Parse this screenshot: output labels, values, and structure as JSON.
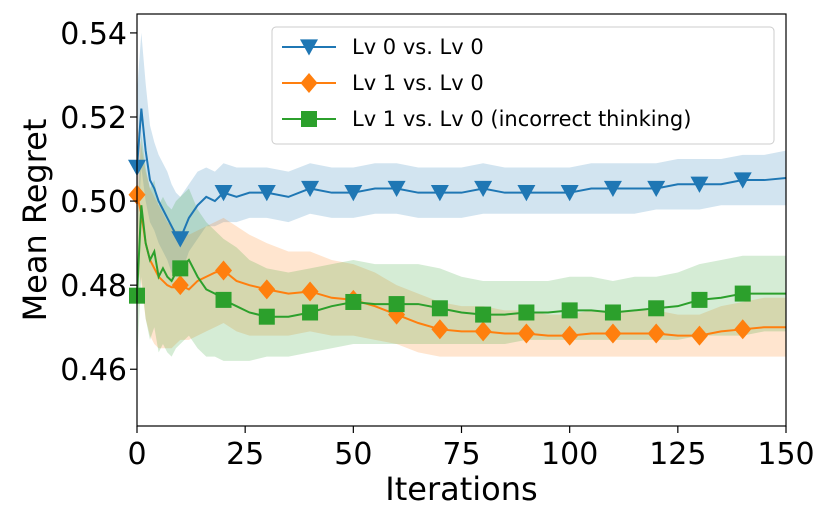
{
  "chart_data": {
    "type": "line",
    "title": "",
    "xlabel": "Iterations",
    "ylabel": "Mean Regret",
    "xlim": [
      0,
      150
    ],
    "ylim": [
      0.4465,
      0.5445
    ],
    "xticks": [
      0,
      25,
      50,
      75,
      100,
      125,
      150
    ],
    "yticks": [
      0.46,
      0.48,
      0.5,
      0.52,
      0.54
    ],
    "xtick_labels": [
      "0",
      "25",
      "50",
      "75",
      "100",
      "125",
      "150"
    ],
    "ytick_labels": [
      "0.46",
      "0.48",
      "0.50",
      "0.52",
      "0.54"
    ],
    "grid": false,
    "legend_position": "top-right",
    "series": [
      {
        "name": "Lv 0 vs. Lv 0",
        "color": "#1f77b4",
        "marker": "triangle-down",
        "markers_every": 10,
        "x": [
          0,
          1,
          2,
          3,
          4,
          5,
          6,
          7,
          8,
          9,
          10,
          12,
          14,
          16,
          18,
          20,
          23,
          26,
          30,
          35,
          40,
          45,
          50,
          55,
          60,
          65,
          70,
          75,
          80,
          85,
          90,
          95,
          100,
          105,
          110,
          115,
          120,
          125,
          130,
          135,
          140,
          145,
          150
        ],
        "y": [
          0.508,
          0.522,
          0.512,
          0.505,
          0.503,
          0.5,
          0.498,
          0.496,
          0.494,
          0.492,
          0.491,
          0.496,
          0.499,
          0.501,
          0.5,
          0.502,
          0.501,
          0.502,
          0.502,
          0.501,
          0.503,
          0.502,
          0.502,
          0.503,
          0.503,
          0.502,
          0.502,
          0.502,
          0.503,
          0.502,
          0.502,
          0.502,
          0.502,
          0.503,
          0.503,
          0.503,
          0.503,
          0.504,
          0.504,
          0.504,
          0.505,
          0.505,
          0.5055
        ],
        "lower": [
          0.49,
          0.508,
          0.5,
          0.495,
          0.493,
          0.49,
          0.488,
          0.486,
          0.483,
          0.482,
          0.482,
          0.488,
          0.491,
          0.494,
          0.494,
          0.495,
          0.495,
          0.496,
          0.496,
          0.495,
          0.497,
          0.496,
          0.496,
          0.497,
          0.497,
          0.496,
          0.496,
          0.496,
          0.497,
          0.497,
          0.497,
          0.497,
          0.497,
          0.497,
          0.497,
          0.497,
          0.498,
          0.498,
          0.498,
          0.499,
          0.499,
          0.499,
          0.499
        ],
        "upper": [
          0.526,
          0.54,
          0.528,
          0.518,
          0.514,
          0.511,
          0.509,
          0.507,
          0.504,
          0.502,
          0.501,
          0.504,
          0.507,
          0.508,
          0.507,
          0.509,
          0.508,
          0.508,
          0.508,
          0.507,
          0.509,
          0.508,
          0.508,
          0.509,
          0.509,
          0.508,
          0.508,
          0.508,
          0.509,
          0.508,
          0.508,
          0.508,
          0.508,
          0.509,
          0.509,
          0.509,
          0.509,
          0.51,
          0.51,
          0.51,
          0.511,
          0.511,
          0.512
        ]
      },
      {
        "name": "Lv 1 vs. Lv 0",
        "color": "#ff7f0e",
        "marker": "diamond",
        "markers_every": 10,
        "x": [
          0,
          1,
          2,
          3,
          4,
          5,
          6,
          7,
          8,
          9,
          10,
          12,
          14,
          16,
          18,
          20,
          23,
          26,
          30,
          35,
          40,
          45,
          50,
          55,
          60,
          65,
          70,
          75,
          80,
          85,
          90,
          95,
          100,
          105,
          110,
          115,
          120,
          125,
          130,
          135,
          140,
          145,
          150
        ],
        "y": [
          0.5015,
          0.497,
          0.49,
          0.486,
          0.484,
          0.482,
          0.481,
          0.48,
          0.4795,
          0.4795,
          0.48,
          0.479,
          0.481,
          0.482,
          0.483,
          0.4835,
          0.481,
          0.48,
          0.479,
          0.478,
          0.4785,
          0.477,
          0.4765,
          0.475,
          0.473,
          0.471,
          0.4695,
          0.469,
          0.469,
          0.4685,
          0.4685,
          0.468,
          0.468,
          0.4685,
          0.4685,
          0.4685,
          0.4685,
          0.468,
          0.468,
          0.469,
          0.4695,
          0.47,
          0.47
        ],
        "lower": [
          0.485,
          0.48,
          0.472,
          0.468,
          0.466,
          0.465,
          0.465,
          0.465,
          0.465,
          0.466,
          0.467,
          0.467,
          0.468,
          0.469,
          0.47,
          0.471,
          0.469,
          0.468,
          0.468,
          0.468,
          0.469,
          0.468,
          0.468,
          0.467,
          0.466,
          0.464,
          0.463,
          0.463,
          0.463,
          0.463,
          0.463,
          0.463,
          0.463,
          0.463,
          0.463,
          0.463,
          0.463,
          0.463,
          0.463,
          0.463,
          0.463,
          0.463,
          0.463
        ],
        "upper": [
          0.518,
          0.513,
          0.507,
          0.503,
          0.501,
          0.499,
          0.497,
          0.495,
          0.494,
          0.493,
          0.493,
          0.492,
          0.493,
          0.494,
          0.495,
          0.496,
          0.494,
          0.492,
          0.49,
          0.488,
          0.488,
          0.486,
          0.485,
          0.483,
          0.48,
          0.478,
          0.476,
          0.475,
          0.475,
          0.474,
          0.474,
          0.473,
          0.473,
          0.474,
          0.474,
          0.474,
          0.474,
          0.473,
          0.473,
          0.475,
          0.476,
          0.477,
          0.477
        ]
      },
      {
        "name": "Lv 1 vs. Lv 0 (incorrect thinking)",
        "color": "#2ca02c",
        "marker": "square",
        "markers_every": 10,
        "x": [
          0,
          1,
          2,
          3,
          4,
          5,
          6,
          7,
          8,
          9,
          10,
          12,
          14,
          16,
          18,
          20,
          23,
          26,
          30,
          35,
          40,
          45,
          50,
          55,
          60,
          65,
          70,
          75,
          80,
          85,
          90,
          95,
          100,
          105,
          110,
          115,
          120,
          125,
          130,
          135,
          140,
          145,
          150
        ],
        "y": [
          0.4775,
          0.499,
          0.49,
          0.486,
          0.488,
          0.482,
          0.484,
          0.482,
          0.481,
          0.483,
          0.484,
          0.486,
          0.482,
          0.479,
          0.478,
          0.4765,
          0.475,
          0.4735,
          0.4725,
          0.4725,
          0.4735,
          0.475,
          0.476,
          0.4755,
          0.4755,
          0.4755,
          0.4745,
          0.4735,
          0.473,
          0.473,
          0.4735,
          0.4735,
          0.474,
          0.474,
          0.4735,
          0.474,
          0.4745,
          0.475,
          0.4765,
          0.477,
          0.478,
          0.478,
          0.478
        ],
        "lower": [
          0.462,
          0.482,
          0.472,
          0.467,
          0.47,
          0.464,
          0.466,
          0.464,
          0.463,
          0.465,
          0.466,
          0.468,
          0.465,
          0.463,
          0.463,
          0.462,
          0.462,
          0.462,
          0.463,
          0.463,
          0.464,
          0.465,
          0.466,
          0.466,
          0.466,
          0.466,
          0.466,
          0.466,
          0.466,
          0.466,
          0.467,
          0.467,
          0.467,
          0.467,
          0.467,
          0.467,
          0.467,
          0.467,
          0.468,
          0.468,
          0.468,
          0.469,
          0.469
        ],
        "upper": [
          0.495,
          0.516,
          0.508,
          0.503,
          0.505,
          0.499,
          0.501,
          0.499,
          0.498,
          0.5,
          0.501,
          0.503,
          0.498,
          0.495,
          0.493,
          0.491,
          0.489,
          0.486,
          0.484,
          0.483,
          0.484,
          0.485,
          0.486,
          0.485,
          0.485,
          0.485,
          0.484,
          0.482,
          0.481,
          0.481,
          0.481,
          0.481,
          0.482,
          0.482,
          0.481,
          0.482,
          0.482,
          0.483,
          0.485,
          0.486,
          0.487,
          0.487,
          0.487
        ]
      }
    ]
  }
}
